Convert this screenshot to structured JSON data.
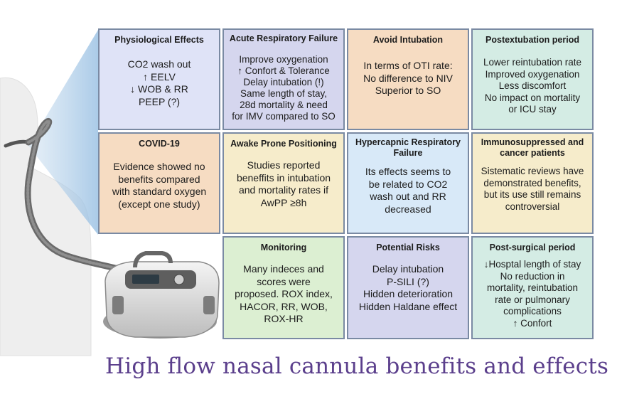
{
  "title": "High flow nasal cannula benefits and effects",
  "colors": {
    "blue": "#dfe3f7",
    "lavender": "#d5d6ee",
    "peach": "#f6dcc2",
    "mint": "#d4ece4",
    "cream": "#f6eccb",
    "skyblue": "#d8e9f8",
    "green": "#dcefd2",
    "title": "#5b3f8c"
  },
  "cards": [
    {
      "id": "physiological-effects",
      "title": "Physiological Effects",
      "body": "CO2 wash out\n↑ EELV\n↓ WOB & RR\nPEEP (?)",
      "color": "#dfe3f7"
    },
    {
      "id": "acute-respiratory-failure",
      "title": "Acute Respiratory Failure",
      "body": "Improve oxygenation\n↑ Confort & Tolerance\nDelay intubation (!)\nSame length of stay,\n28d mortality & need\nfor IMV compared to SO",
      "color": "#d5d6ee"
    },
    {
      "id": "avoid-intubation",
      "title": "Avoid Intubation",
      "body": "In terms of OTI rate:\nNo difference to NIV\nSuperior to SO",
      "color": "#f6dcc2"
    },
    {
      "id": "postextubation-period",
      "title": "Postextubation period",
      "body": "Lower reintubation rate\nImproved oxygenation\nLess discomfort\nNo impact on mortality\nor ICU stay",
      "color": "#d4ece4"
    },
    {
      "id": "covid-19",
      "title": "COVID-19",
      "body": "Evidence showed no\nbenefits compared\nwith standard oxygen\n(except one study)",
      "color": "#f6dcc2"
    },
    {
      "id": "awake-prone-positioning",
      "title": "Awake Prone Positioning",
      "body": "Studies reported\nbeneffits in intubation\nand mortality rates if\nAwPP ≥8h",
      "color": "#f6eccb"
    },
    {
      "id": "hypercapnic-respiratory-failure",
      "title": "Hypercapnic Respiratory\nFailure",
      "body": "Its effects seems to\nbe related to CO2\nwash out and RR\ndecreased",
      "color": "#d8e9f8"
    },
    {
      "id": "immunosuppressed-cancer",
      "title": "Immunosuppressed and\ncancer patients",
      "body": "Sistematic reviews have\ndemonstrated benefits,\nbut its use still remains\ncontroversial",
      "color": "#f6eccb"
    },
    {
      "id": "monitoring",
      "title": "Monitoring",
      "body": "Many indeces and\nscores were\nproposed. ROX index,\nHACOR, RR, WOB,\nROX-HR",
      "color": "#dcefd2"
    },
    {
      "id": "potential-risks",
      "title": "Potential Risks",
      "body": "Delay intubation\nP-SILI (?)\nHidden deterioration\nHidden Haldane effect",
      "color": "#d5d6ee"
    },
    {
      "id": "post-surgical-period",
      "title": "Post-surgical period",
      "body": "↓Hosptal length of stay\nNo reduction in\nmortality, reintubation\nrate or pulmonary\ncomplications\n↑ Confort",
      "color": "#d4ece4"
    }
  ]
}
